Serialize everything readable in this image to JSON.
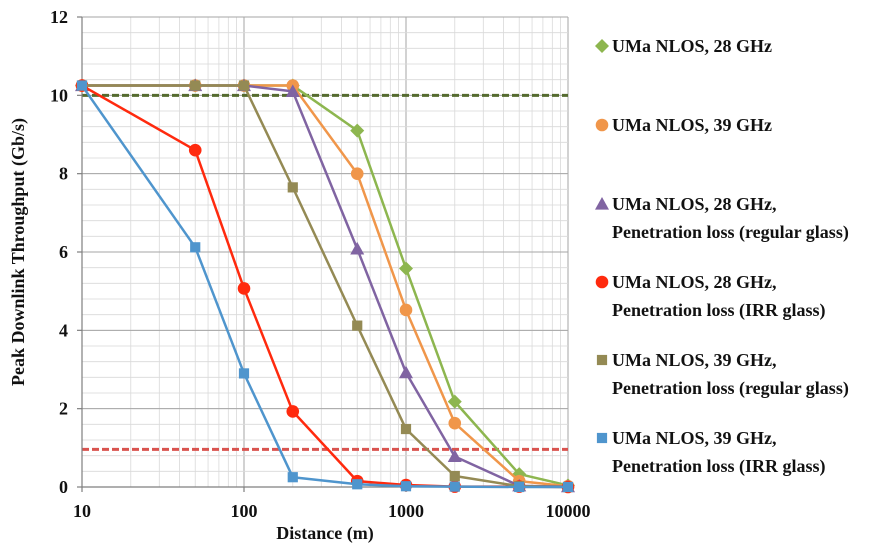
{
  "chart_data": {
    "type": "line",
    "x_scale": "log",
    "xlabel": "Distance (m)",
    "ylabel": "Peak Downlink Throughput (Gb/s)",
    "xlim": [
      10,
      10000
    ],
    "ylim": [
      0,
      12
    ],
    "x_ticks": [
      "10",
      "100",
      "1000",
      "10000"
    ],
    "y_ticks": [
      "0",
      "2",
      "4",
      "6",
      "8",
      "10",
      "12"
    ],
    "grid": true,
    "legend_position": "right",
    "x": [
      10,
      50,
      100,
      200,
      500,
      1000,
      2000,
      5000,
      10000
    ],
    "series": [
      {
        "name": [
          "UMa NLOS, 28 GHz"
        ],
        "color": "#8db64f",
        "marker": "diamond",
        "values": [
          10.25,
          10.25,
          10.25,
          10.25,
          9.1,
          5.58,
          2.18,
          0.33,
          0.04
        ]
      },
      {
        "name": [
          "UMa NLOS, 39 GHz"
        ],
        "color": "#f0964a",
        "marker": "circle",
        "values": [
          10.25,
          10.25,
          10.25,
          10.25,
          8.0,
          4.52,
          1.63,
          0.15,
          0.02
        ]
      },
      {
        "name": [
          "UMa NLOS, 28 GHz,",
          "Penetration loss (regular glass)"
        ],
        "color": "#8064a2",
        "marker": "triangle",
        "values": [
          10.25,
          10.25,
          10.25,
          10.1,
          6.08,
          2.92,
          0.78,
          0.03,
          0.01
        ]
      },
      {
        "name": [
          "UMa NLOS, 28 GHz,",
          "Penetration loss (IRR  glass)"
        ],
        "color": "#ff2a0e",
        "marker": "circle",
        "values": [
          10.25,
          8.6,
          5.07,
          1.93,
          0.15,
          0.05,
          0.01,
          0.01,
          0.0
        ]
      },
      {
        "name": [
          "UMa NLOS, 39 GHz,",
          "Penetration loss (regular glass)"
        ],
        "color": "#948a54",
        "marker": "square",
        "values": [
          10.25,
          10.25,
          10.25,
          7.65,
          4.12,
          1.48,
          0.28,
          0.02,
          0.0
        ]
      },
      {
        "name": [
          "UMa NLOS, 39 GHz,",
          "Penetration loss (IRR  glass)"
        ],
        "color": "#4f95cd",
        "marker": "square",
        "values": [
          10.25,
          6.12,
          2.9,
          0.25,
          0.07,
          0.02,
          0.01,
          0.0,
          0.0
        ]
      }
    ],
    "reference_lines": [
      {
        "y": 10.0,
        "color": "#556b2f",
        "style": "dashed"
      },
      {
        "y": 0.96,
        "color": "#d9534f",
        "style": "dashed"
      }
    ]
  }
}
